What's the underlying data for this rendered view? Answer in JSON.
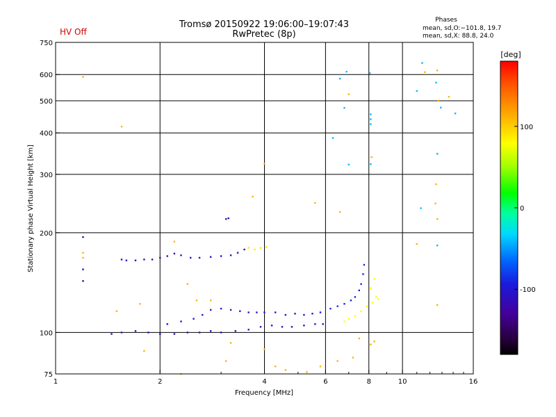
{
  "status": {
    "hv": "HV Off"
  },
  "header": {
    "title_line1": "Tromsø 20150922 19:06:00–19:07:43",
    "title_line2": "RwPretec (8p)",
    "phases_title": "Phases",
    "phases_line1": "mean, sd,O:−101.8, 19.7",
    "phases_line2": "mean, sd,X:  88.8, 24.0"
  },
  "chart_data": {
    "type": "scatter",
    "title": "Tromsø 20150922 19:06:00–19:07:43",
    "subtitle": "RwPretec (8p)",
    "xlabel": "Frequency [MHz]",
    "ylabel": "Stationary phase Virtual Height [km]",
    "x_scale": "log",
    "y_scale": "log",
    "xlim": [
      1,
      16
    ],
    "ylim": [
      75,
      750
    ],
    "x_ticks": [
      1,
      2,
      4,
      6,
      8,
      10,
      16
    ],
    "x_tick_labels": [
      "1",
      "2",
      "4",
      "6",
      "8",
      "10",
      "16"
    ],
    "y_ticks": [
      75,
      100,
      200,
      300,
      400,
      500,
      600,
      750
    ],
    "y_tick_labels": [
      "75",
      "100",
      "200",
      "300",
      "400",
      "500",
      "600",
      "750"
    ],
    "grid": true,
    "colorbar": {
      "label": "[deg]",
      "range": [
        -180,
        180
      ],
      "ticks": [
        100,
        0,
        -100
      ],
      "tick_labels": [
        "100",
        "0",
        "-100"
      ],
      "colormap": "rainbow (black-purple-blue-cyan-green-yellow-orange-red)"
    },
    "traces": [
      {
        "description": "E-layer trace",
        "phase_deg": -110,
        "points": [
          [
            1.55,
            166
          ],
          [
            1.6,
            165
          ],
          [
            1.7,
            165
          ],
          [
            1.8,
            166
          ],
          [
            1.9,
            166
          ],
          [
            2.0,
            168
          ],
          [
            2.1,
            170
          ],
          [
            2.2,
            173
          ],
          [
            2.3,
            171
          ],
          [
            2.45,
            168
          ],
          [
            2.6,
            168
          ],
          [
            2.8,
            169
          ],
          [
            3.0,
            170
          ],
          [
            3.2,
            171
          ],
          [
            3.35,
            174
          ],
          [
            3.5,
            178
          ]
        ]
      },
      {
        "description": "E-layer trace (high frequency end)",
        "phase_deg": 90,
        "points": [
          [
            3.6,
            180
          ],
          [
            3.75,
            178
          ],
          [
            3.9,
            180
          ],
          [
            4.05,
            181
          ]
        ]
      },
      {
        "description": "F-layer trace (lower)",
        "phase_deg": -110,
        "points": [
          [
            1.45,
            99
          ],
          [
            1.55,
            100
          ],
          [
            1.7,
            101
          ],
          [
            1.85,
            100
          ],
          [
            2.0,
            99
          ],
          [
            2.2,
            99
          ],
          [
            2.4,
            100
          ],
          [
            2.6,
            100
          ],
          [
            2.8,
            101
          ],
          [
            3.0,
            100
          ],
          [
            3.3,
            101
          ],
          [
            3.6,
            102
          ],
          [
            3.9,
            104
          ],
          [
            4.2,
            105
          ],
          [
            4.5,
            104
          ],
          [
            4.8,
            104
          ],
          [
            5.2,
            105
          ],
          [
            5.6,
            106
          ],
          [
            5.9,
            106
          ]
        ]
      },
      {
        "description": "F-layer trace (upper)",
        "phase_deg": -105,
        "points": [
          [
            2.1,
            106
          ],
          [
            2.3,
            108
          ],
          [
            2.5,
            110
          ],
          [
            2.65,
            113
          ],
          [
            2.8,
            117
          ],
          [
            3.0,
            118
          ],
          [
            3.2,
            117
          ],
          [
            3.4,
            116
          ],
          [
            3.6,
            115
          ],
          [
            3.8,
            115
          ],
          [
            4.0,
            115
          ],
          [
            4.3,
            115
          ],
          [
            4.6,
            113
          ],
          [
            4.9,
            114
          ],
          [
            5.2,
            113
          ],
          [
            5.5,
            114
          ],
          [
            5.8,
            115
          ]
        ]
      },
      {
        "description": "F-layer trace (near critical frequency)",
        "phase_deg": -90,
        "points": [
          [
            6.2,
            118
          ],
          [
            6.5,
            120
          ],
          [
            6.8,
            122
          ],
          [
            7.1,
            125
          ],
          [
            7.3,
            128
          ],
          [
            7.5,
            134
          ],
          [
            7.6,
            140
          ],
          [
            7.7,
            150
          ],
          [
            7.75,
            160
          ]
        ]
      },
      {
        "description": "F-layer trace (near critical frequency, mixed phase)",
        "phase_deg": 80,
        "points": [
          [
            6.8,
            108
          ],
          [
            7.0,
            110
          ],
          [
            7.3,
            112
          ],
          [
            7.6,
            116
          ],
          [
            7.9,
            120
          ],
          [
            8.2,
            123
          ],
          [
            8.4,
            128
          ],
          [
            8.1,
            136
          ],
          [
            8.3,
            145
          ],
          [
            8.5,
            126
          ]
        ]
      },
      {
        "description": "Upper frequency scatter",
        "phase_deg": -40,
        "points": [
          [
            6.6,
            583
          ],
          [
            6.9,
            612
          ],
          [
            8.05,
            606
          ],
          [
            6.8,
            476
          ],
          [
            8.1,
            455
          ],
          [
            8.1,
            440
          ],
          [
            8.1,
            425
          ],
          [
            6.3,
            386
          ],
          [
            7.0,
            321
          ],
          [
            8.1,
            322
          ],
          [
            11.0,
            535
          ],
          [
            11.4,
            650
          ],
          [
            12.5,
            567
          ],
          [
            12.9,
            477
          ],
          [
            12.6,
            346
          ],
          [
            11.3,
            237
          ],
          [
            12.6,
            183
          ],
          [
            14.2,
            458
          ]
        ]
      },
      {
        "description": "Scattered echoes (mixed phase)",
        "phase_deg": 110,
        "points": [
          [
            1.2,
            590
          ],
          [
            1.55,
            418
          ],
          [
            4.0,
            323
          ],
          [
            5.6,
            246
          ],
          [
            6.6,
            231
          ],
          [
            7.0,
            523
          ],
          [
            8.15,
            338
          ],
          [
            11.0,
            185
          ],
          [
            11.6,
            610
          ],
          [
            12.6,
            617
          ],
          [
            12.7,
            500
          ],
          [
            13.6,
            514
          ],
          [
            12.5,
            280
          ],
          [
            12.45,
            245
          ],
          [
            12.6,
            220
          ],
          [
            12.6,
            121
          ],
          [
            1.2,
            174
          ],
          [
            1.2,
            168
          ],
          [
            2.2,
            188
          ],
          [
            2.4,
            140
          ],
          [
            3.7,
            257
          ],
          [
            1.75,
            122
          ],
          [
            2.55,
            125
          ],
          [
            2.8,
            125
          ],
          [
            3.2,
            93
          ],
          [
            4.0,
            89
          ],
          [
            3.1,
            82
          ],
          [
            4.3,
            79
          ],
          [
            4.6,
            77
          ],
          [
            5.3,
            76
          ],
          [
            5.8,
            79
          ],
          [
            6.5,
            82
          ],
          [
            7.2,
            84
          ],
          [
            7.5,
            96
          ],
          [
            8.3,
            94
          ],
          [
            8.1,
            92
          ],
          [
            2.3,
            75
          ],
          [
            1.5,
            116
          ],
          [
            1.8,
            88
          ]
        ]
      },
      {
        "description": "Low-frequency isolated echoes",
        "phase_deg": -120,
        "points": [
          [
            1.2,
            194
          ],
          [
            1.2,
            155
          ],
          [
            1.2,
            143
          ],
          [
            3.15,
            221
          ],
          [
            3.1,
            220
          ]
        ]
      }
    ]
  }
}
